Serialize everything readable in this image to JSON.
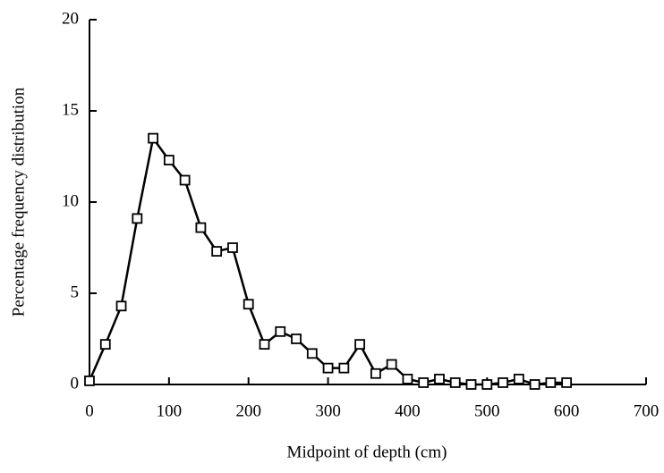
{
  "chart_data": {
    "type": "line",
    "x_label": "Midpoint of depth (cm)",
    "y_label": "Percentage frequency distribution",
    "x": [
      0,
      20,
      40,
      60,
      80,
      100,
      120,
      140,
      160,
      180,
      200,
      220,
      240,
      260,
      280,
      300,
      320,
      340,
      360,
      380,
      400,
      420,
      440,
      460,
      480,
      500,
      520,
      540,
      560,
      580,
      600
    ],
    "series": [
      {
        "color": "#000000",
        "values": [
          0.2,
          2.2,
          4.3,
          9.1,
          13.5,
          12.3,
          11.2,
          8.6,
          7.3,
          7.5,
          4.4,
          2.2,
          2.9,
          2.5,
          1.7,
          0.9,
          0.9,
          2.2,
          0.6,
          1.1,
          0.3,
          0.1,
          0.3,
          0.1,
          0,
          0,
          0.1,
          0.3,
          0,
          0.1,
          0.1
        ]
      }
    ],
    "xlim": [
      0,
      700
    ],
    "xticks": [
      0,
      100,
      200,
      300,
      400,
      500,
      600,
      700
    ],
    "ylim": [
      0,
      20
    ],
    "yticks": [
      0,
      5,
      10,
      15,
      20
    ],
    "grid": false
  }
}
